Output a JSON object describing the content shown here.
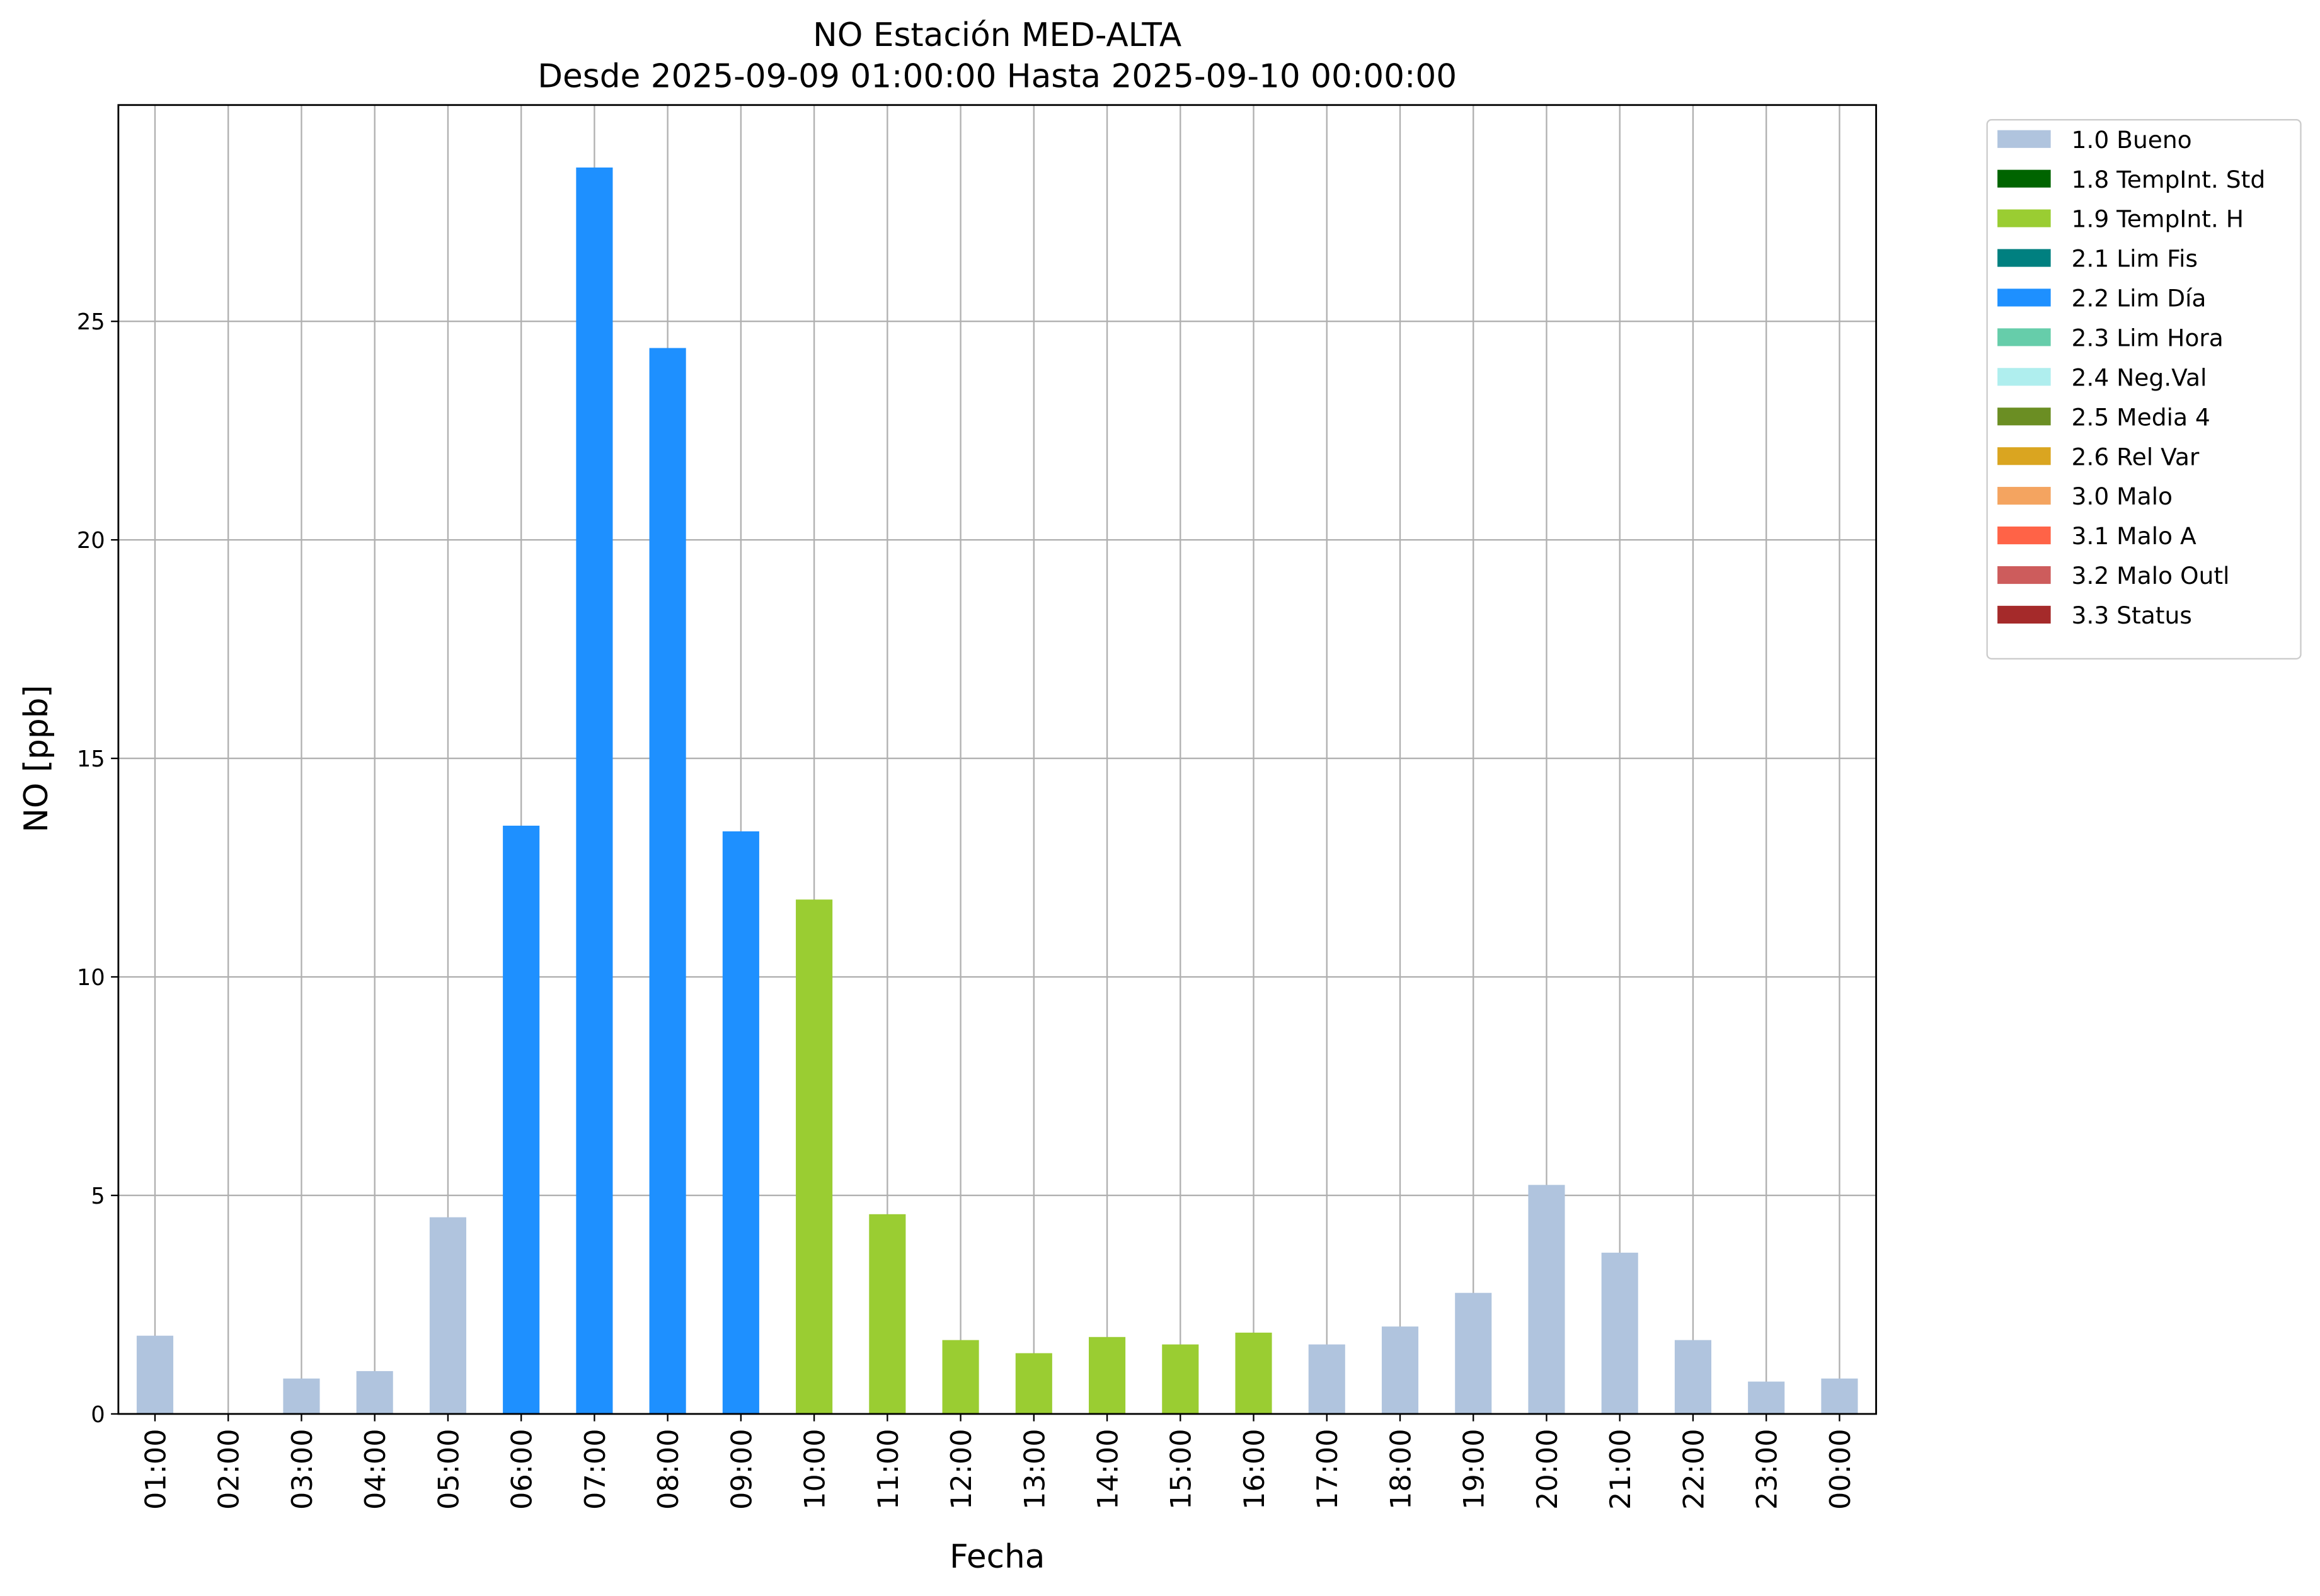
{
  "chart_data": {
    "type": "bar",
    "title": "NO Estación MED-ALTA",
    "subtitle": "Desde 2025-09-09 01:00:00 Hasta 2025-09-10 00:00:00",
    "x_label": "Fecha",
    "y_label": "NO [ppb]",
    "categories": [
      "01:00",
      "02:00",
      "03:00",
      "04:00",
      "05:00",
      "06:00",
      "07:00",
      "08:00",
      "09:00",
      "10:00",
      "11:00",
      "12:00",
      "13:00",
      "14:00",
      "15:00",
      "16:00",
      "17:00",
      "18:00",
      "19:00",
      "20:00",
      "21:00",
      "22:00",
      "23:00",
      "00:00"
    ],
    "ylim": [
      0,
      29.95
    ],
    "yticks": [
      0,
      5,
      10,
      15,
      20,
      25
    ],
    "grid": true,
    "legend": "outside upper right",
    "series": [
      {
        "name": "1.0 Bueno",
        "color": "#b0c4de",
        "values": [
          1.79,
          null,
          0.81,
          0.98,
          4.5,
          null,
          null,
          null,
          null,
          null,
          null,
          null,
          null,
          null,
          null,
          null,
          1.59,
          2.0,
          2.77,
          5.24,
          3.69,
          1.69,
          0.74,
          0.81
        ]
      },
      {
        "name": "1.8 TempInt. Std",
        "color": "#006400",
        "values": [
          null,
          null,
          null,
          null,
          null,
          null,
          null,
          null,
          null,
          null,
          null,
          null,
          null,
          null,
          null,
          null,
          null,
          null,
          null,
          null,
          null,
          null,
          null,
          null
        ]
      },
      {
        "name": "1.9 TempInt. H",
        "color": "#9acd32",
        "values": [
          null,
          null,
          null,
          null,
          null,
          null,
          null,
          null,
          null,
          11.77,
          4.57,
          1.69,
          1.39,
          1.76,
          1.59,
          1.86,
          null,
          null,
          null,
          null,
          null,
          null,
          null,
          null
        ]
      },
      {
        "name": "2.1 Lim Fis",
        "color": "#008080",
        "values": [
          null,
          null,
          null,
          null,
          null,
          null,
          null,
          null,
          null,
          null,
          null,
          null,
          null,
          null,
          null,
          null,
          null,
          null,
          null,
          null,
          null,
          null,
          null,
          null
        ]
      },
      {
        "name": "2.2 Lim Día",
        "color": "#1e90ff",
        "values": [
          null,
          null,
          null,
          null,
          null,
          13.46,
          28.52,
          24.39,
          13.33,
          null,
          null,
          null,
          null,
          null,
          null,
          null,
          null,
          null,
          null,
          null,
          null,
          null,
          null,
          null
        ]
      },
      {
        "name": "2.3 Lim Hora",
        "color": "#66cdaa",
        "values": [
          null,
          null,
          null,
          null,
          null,
          null,
          null,
          null,
          null,
          null,
          null,
          null,
          null,
          null,
          null,
          null,
          null,
          null,
          null,
          null,
          null,
          null,
          null,
          null
        ]
      },
      {
        "name": "2.4 Neg.Val",
        "color": "#afeeee",
        "values": [
          null,
          null,
          null,
          null,
          null,
          null,
          null,
          null,
          null,
          null,
          null,
          null,
          null,
          null,
          null,
          null,
          null,
          null,
          null,
          null,
          null,
          null,
          null,
          null
        ]
      },
      {
        "name": "2.5 Media 4",
        "color": "#6b8e23",
        "values": [
          null,
          null,
          null,
          null,
          null,
          null,
          null,
          null,
          null,
          null,
          null,
          null,
          null,
          null,
          null,
          null,
          null,
          null,
          null,
          null,
          null,
          null,
          null,
          null
        ]
      },
      {
        "name": "2.6 Rel Var",
        "color": "#daa520",
        "values": [
          null,
          null,
          null,
          null,
          null,
          null,
          null,
          null,
          null,
          null,
          null,
          null,
          null,
          null,
          null,
          null,
          null,
          null,
          null,
          null,
          null,
          null,
          null,
          null
        ]
      },
      {
        "name": "3.0 Malo",
        "color": "#f4a460",
        "values": [
          null,
          null,
          null,
          null,
          null,
          null,
          null,
          null,
          null,
          null,
          null,
          null,
          null,
          null,
          null,
          null,
          null,
          null,
          null,
          null,
          null,
          null,
          null,
          null
        ]
      },
      {
        "name": "3.1 Malo A",
        "color": "#ff6347",
        "values": [
          null,
          null,
          null,
          null,
          null,
          null,
          null,
          null,
          null,
          null,
          null,
          null,
          null,
          null,
          null,
          null,
          null,
          null,
          null,
          null,
          null,
          null,
          null,
          null
        ]
      },
      {
        "name": "3.2 Malo Outl",
        "color": "#cd5c5c",
        "values": [
          null,
          null,
          null,
          null,
          null,
          null,
          null,
          null,
          null,
          null,
          null,
          null,
          null,
          null,
          null,
          null,
          null,
          null,
          null,
          null,
          null,
          null,
          null,
          null
        ]
      },
      {
        "name": "3.3 Status",
        "color": "#a52a2a",
        "values": [
          null,
          null,
          null,
          null,
          null,
          null,
          null,
          null,
          null,
          null,
          null,
          null,
          null,
          null,
          null,
          null,
          null,
          null,
          null,
          null,
          null,
          null,
          null,
          null
        ]
      }
    ]
  }
}
